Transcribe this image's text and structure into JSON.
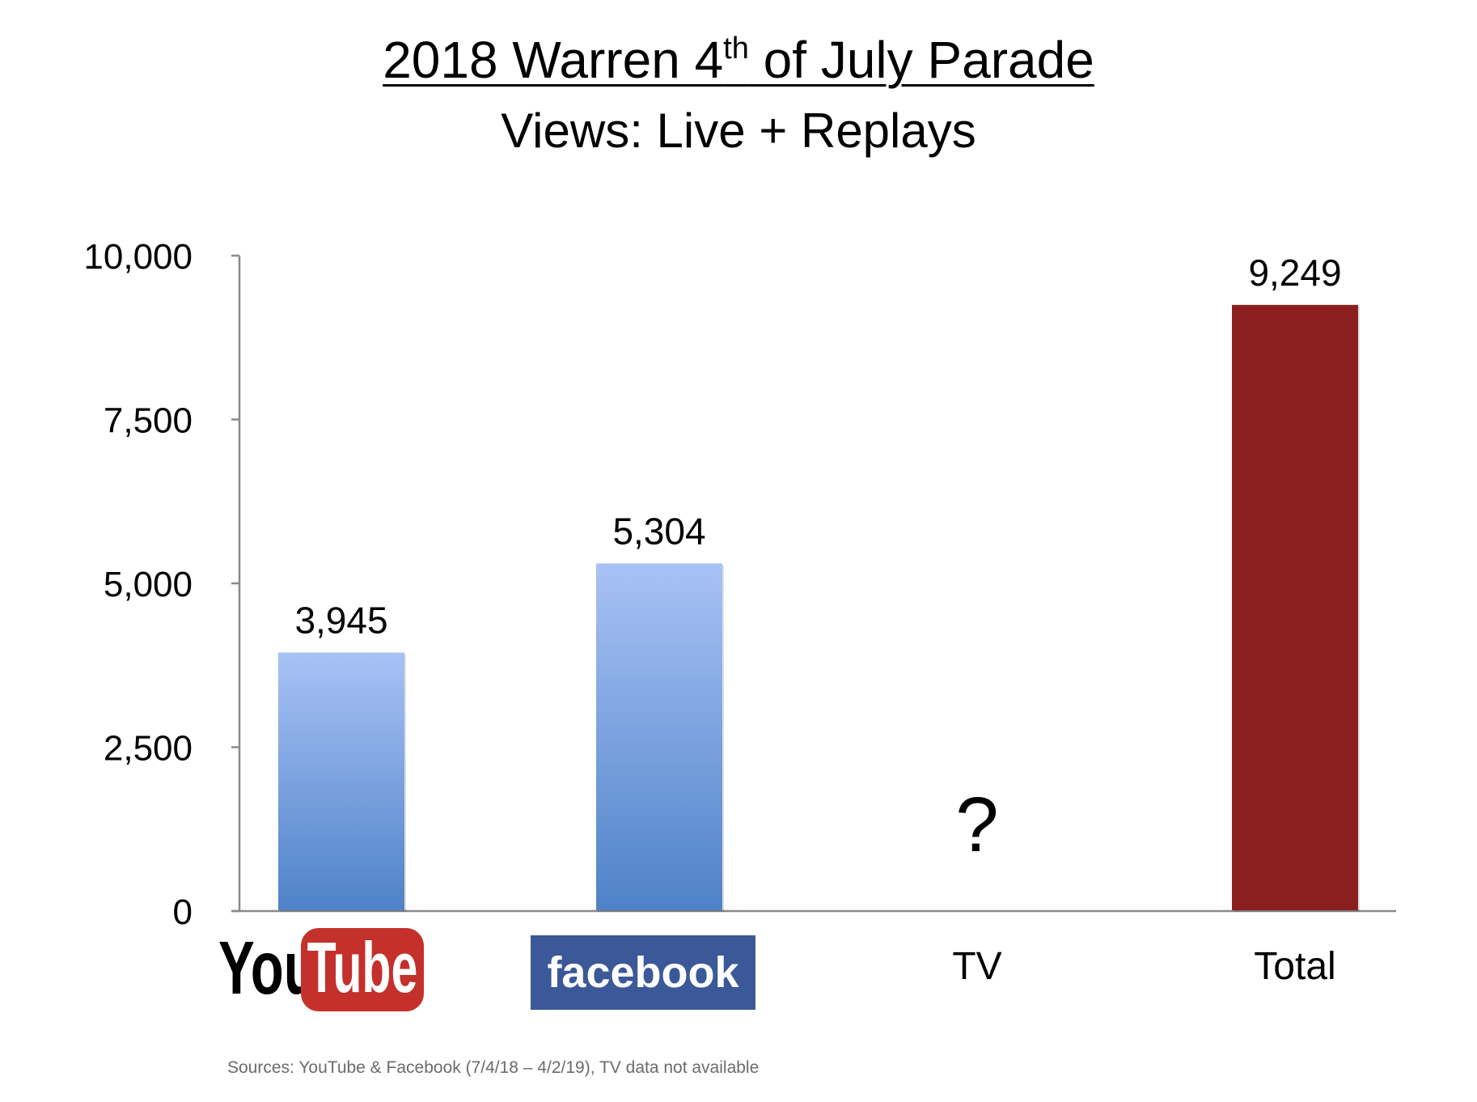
{
  "title": {
    "line1_prefix": "2018 Warren 4",
    "line1_sup": "th",
    "line1_suffix": " of July Parade",
    "line2": "Views: Live + Replays"
  },
  "chart_data": {
    "type": "bar",
    "categories": [
      "YouTube",
      "facebook",
      "TV",
      "Total"
    ],
    "values": [
      3945,
      5304,
      null,
      9249
    ],
    "value_labels": [
      "3,945",
      "5,304",
      "?",
      "9,249"
    ],
    "ylim": [
      0,
      10000
    ],
    "yticks": [
      0,
      2500,
      5000,
      7500,
      10000
    ],
    "ytick_labels": [
      "0",
      "2,500",
      "5,000",
      "7,500",
      "10,000"
    ],
    "bar_colors": [
      "#5b8bd1",
      "#5b8bd1",
      null,
      "#8b1f1f"
    ],
    "grid": false,
    "logos": {
      "youtube": {
        "you": "You",
        "tube": "Tube",
        "color": "#c4302b"
      },
      "facebook": {
        "text": "facebook",
        "color": "#3b5998"
      }
    }
  },
  "source_note": "Sources: YouTube & Facebook (7/4/18 – 4/2/19), TV data not available"
}
